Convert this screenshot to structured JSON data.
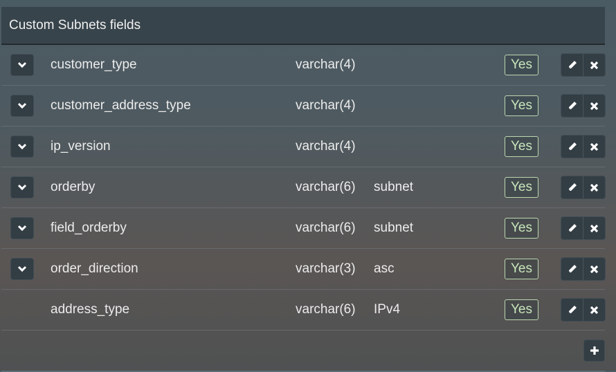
{
  "panel": {
    "title": "Custom Subnets fields"
  },
  "fields": [
    {
      "name": "customer_type",
      "type": "varchar(4)",
      "default": "",
      "required": "Yes",
      "expandable": true
    },
    {
      "name": "customer_address_type",
      "type": "varchar(4)",
      "default": "",
      "required": "Yes",
      "expandable": true
    },
    {
      "name": "ip_version",
      "type": "varchar(4)",
      "default": "",
      "required": "Yes",
      "expandable": true
    },
    {
      "name": "orderby",
      "type": "varchar(6)",
      "default": "subnet",
      "required": "Yes",
      "expandable": true
    },
    {
      "name": "field_orderby",
      "type": "varchar(6)",
      "default": "subnet",
      "required": "Yes",
      "expandable": true
    },
    {
      "name": "order_direction",
      "type": "varchar(3)",
      "default": "asc",
      "required": "Yes",
      "expandable": true
    },
    {
      "name": "address_type",
      "type": "varchar(6)",
      "default": "IPv4",
      "required": "Yes",
      "expandable": false
    }
  ],
  "icons": {
    "toggle": "chevron-down-icon",
    "edit": "pencil-icon",
    "delete": "close-icon",
    "add": "plus-icon"
  },
  "colors": {
    "yes_badge": "#c8e6bb"
  }
}
